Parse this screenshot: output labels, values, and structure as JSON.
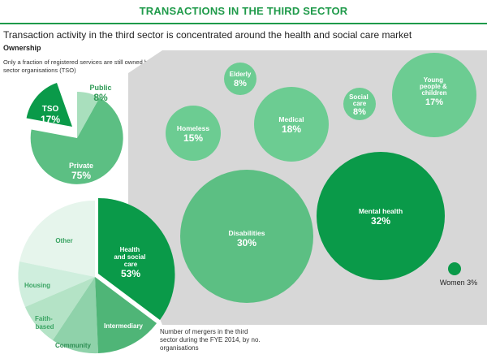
{
  "header": {
    "title": "TRANSACTIONS IN THE THIRD SECTOR",
    "subtitle": "Transaction activity in the third sector is concentrated around the health and social care market",
    "section_label": "Ownership",
    "ownership_note": "Only a fraction of registered services are still owned by third sector organisations (TSO)",
    "mergers_note": "Number of mergers in the third sector during the FYE 2014, by no. organisations"
  },
  "colors": {
    "title_green": "#1f9a4a",
    "dark_green": "#0a9a49",
    "mid_green": "#5cbf83",
    "light_green": "#9fdab6",
    "pale_green": "#cfeedd",
    "panel_grey": "#d7d7d7"
  },
  "chart_data": [
    {
      "type": "pie",
      "name": "ownership",
      "slices": [
        {
          "label": "Public",
          "value": 8
        },
        {
          "label": "TSO",
          "value": 17
        },
        {
          "label": "Private",
          "value": 75
        }
      ]
    },
    {
      "type": "bubble",
      "name": "health-social-care-breakdown",
      "bubbles": [
        {
          "label": "Elderly",
          "value": 8
        },
        {
          "label": "Homeless",
          "value": 15
        },
        {
          "label": "Medical",
          "value": 18
        },
        {
          "label": "Social care",
          "value": 8
        },
        {
          "label": "Young people & children",
          "value": 17
        },
        {
          "label": "Mental health",
          "value": 32
        },
        {
          "label": "Disabilities",
          "value": 30
        },
        {
          "label": "Women",
          "value": 3
        }
      ],
      "outside_label": "Women 3%"
    },
    {
      "type": "pie",
      "name": "mergers",
      "slices": [
        {
          "label": "Health and social care",
          "value": 53
        },
        {
          "label": "Intermediary"
        },
        {
          "label": "Community"
        },
        {
          "label": "Faith-based"
        },
        {
          "label": "Housing"
        },
        {
          "label": "Other"
        }
      ]
    }
  ]
}
